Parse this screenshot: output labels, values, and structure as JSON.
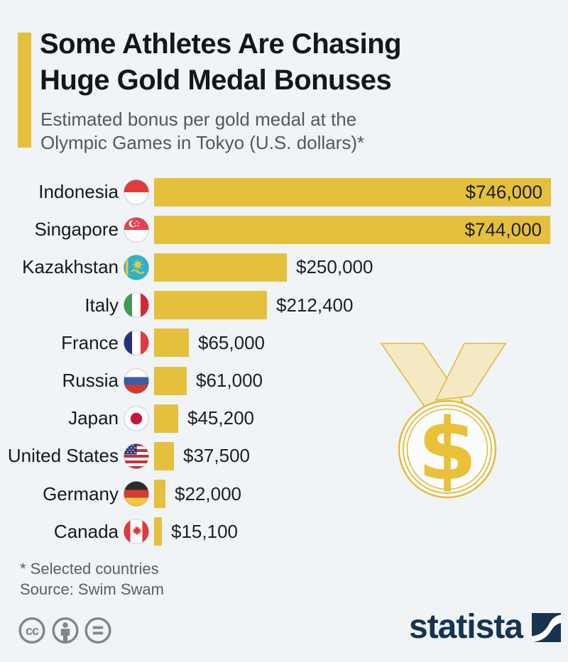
{
  "page": {
    "background_color": "#f0f4f7"
  },
  "header": {
    "title_line1": "Some Athletes Are Chasing",
    "title_line2": "Huge Gold Medal Bonuses",
    "subtitle_line1": "Estimated bonus per gold medal at the",
    "subtitle_line2": "Olympic Games in Tokyo (U.S. dollars)*",
    "accent_color": "#e5c03c"
  },
  "chart_data": {
    "type": "bar",
    "orientation": "horizontal",
    "title": "Some Athletes Are Chasing Huge Gold Medal Bonuses",
    "subtitle": "Estimated bonus per gold medal at the Olympic Games in Tokyo (U.S. dollars)*",
    "unit": "U.S. dollars",
    "xlim": [
      0,
      746000
    ],
    "bar_color": "#e5c03c",
    "grid": false,
    "legend": "none",
    "categories": [
      "Indonesia",
      "Singapore",
      "Kazakhstan",
      "Italy",
      "France",
      "Russia",
      "Japan",
      "United States",
      "Germany",
      "Canada"
    ],
    "values": [
      746000,
      744000,
      250000,
      212400,
      65000,
      61000,
      45200,
      37500,
      22000,
      15100
    ],
    "value_labels": [
      "$746,000",
      "$744,000",
      "$250,000",
      "$212,400",
      "$65,000",
      "$61,000",
      "$45,200",
      "$37,500",
      "$22,000",
      "$15,100"
    ],
    "value_label_inside": [
      true,
      true,
      false,
      false,
      false,
      false,
      false,
      false,
      false,
      false
    ],
    "flags": [
      "indonesia",
      "singapore",
      "kazakhstan",
      "italy",
      "france",
      "russia",
      "japan",
      "united-states",
      "germany",
      "canada"
    ]
  },
  "decoration": {
    "medal_icon": "gold-medal-with-dollar-sign-and-ribbon",
    "medal_gold": "#e8c138",
    "ribbon_fill": "#f5e9c4",
    "ribbon_stroke": "#dfb93e"
  },
  "footer": {
    "footnote": "* Selected countries",
    "source": "Source: Swim Swam",
    "license_icons": [
      "cc-icon",
      "attribution-person-icon",
      "no-derivatives-icon"
    ],
    "license_color": "#818588",
    "brand": "statista",
    "brand_color": "#17334f"
  }
}
